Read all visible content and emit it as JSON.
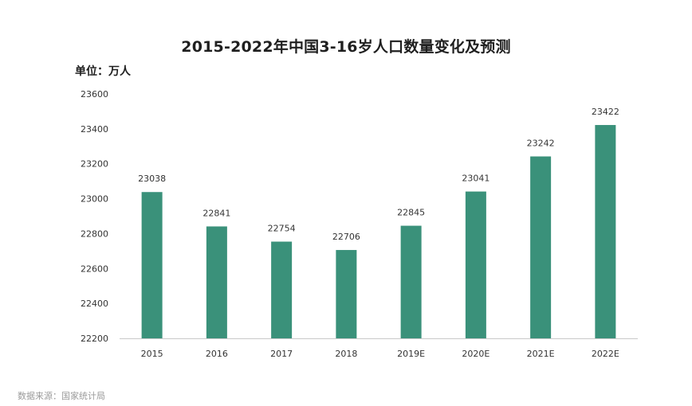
{
  "title": "2015-2022年中国3-16岁人口数量变化及预测",
  "unit": "单位：万人",
  "source": "数据来源：国家统计局",
  "colors": {
    "bar": "#3a917a",
    "axis": "#c9c9c9",
    "text": "#333333"
  },
  "chart_data": {
    "type": "bar",
    "categories": [
      "2015",
      "2016",
      "2017",
      "2018",
      "2019E",
      "2020E",
      "2021E",
      "2022E"
    ],
    "values": [
      23038,
      22841,
      22754,
      22706,
      22845,
      23041,
      23242,
      23422
    ],
    "ylim": [
      22200,
      23600
    ],
    "yticks": [
      22200,
      22400,
      22600,
      22800,
      23000,
      23200,
      23400,
      23600
    ],
    "grid": false,
    "legend": "none"
  }
}
